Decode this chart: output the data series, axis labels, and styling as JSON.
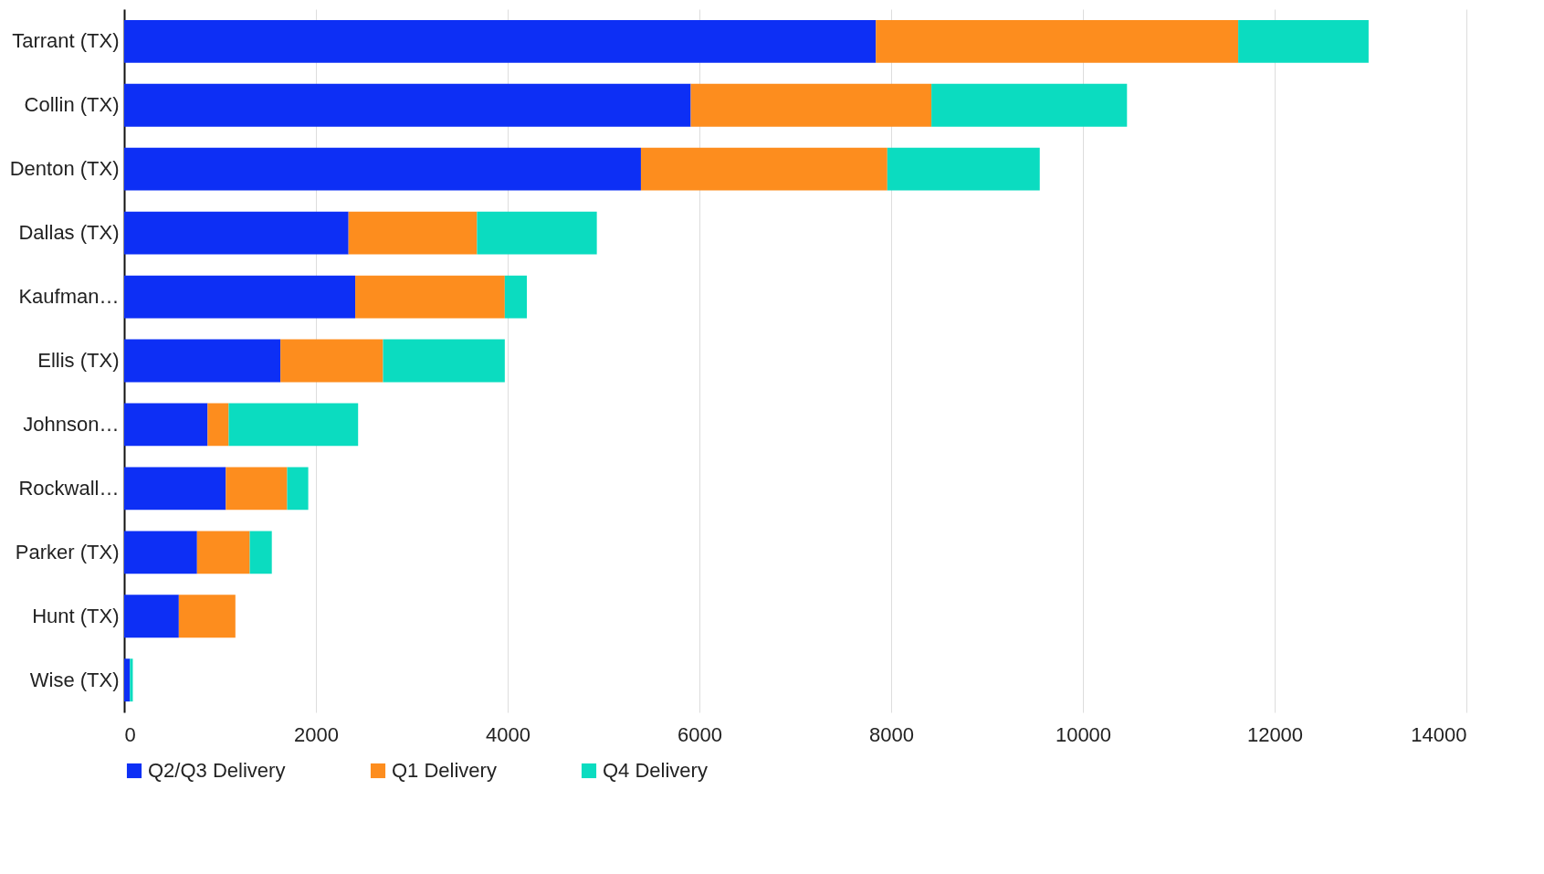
{
  "chart_data": {
    "type": "bar",
    "orientation": "horizontal",
    "stacked": true,
    "categories": [
      "Tarrant (TX)",
      "Collin (TX)",
      "Denton (TX)",
      "Dallas (TX)",
      "Kaufman…",
      "Ellis (TX)",
      "Johnson…",
      "Rockwall…",
      "Parker (TX)",
      "Hunt (TX)",
      "Wise (TX)"
    ],
    "series": [
      {
        "name": "Q2/Q3 Delivery",
        "color": "#0d2ff5",
        "values": [
          7840,
          5910,
          5390,
          2340,
          2410,
          1630,
          870,
          1060,
          760,
          570,
          60
        ]
      },
      {
        "name": "Q1 Delivery",
        "color": "#fd8d1e",
        "values": [
          3780,
          2510,
          2570,
          1340,
          1560,
          1070,
          220,
          640,
          550,
          590,
          null
        ]
      },
      {
        "name": "Q4 Delivery",
        "color": "#0bdcc0",
        "values": [
          1360,
          2040,
          1590,
          1250,
          230,
          1270,
          1350,
          220,
          230,
          null,
          30
        ]
      }
    ],
    "xlim": [
      0,
      14000
    ],
    "xticks": [
      0,
      2000,
      4000,
      6000,
      8000,
      10000,
      12000,
      14000
    ],
    "grid": "x",
    "legend": "bottom"
  }
}
